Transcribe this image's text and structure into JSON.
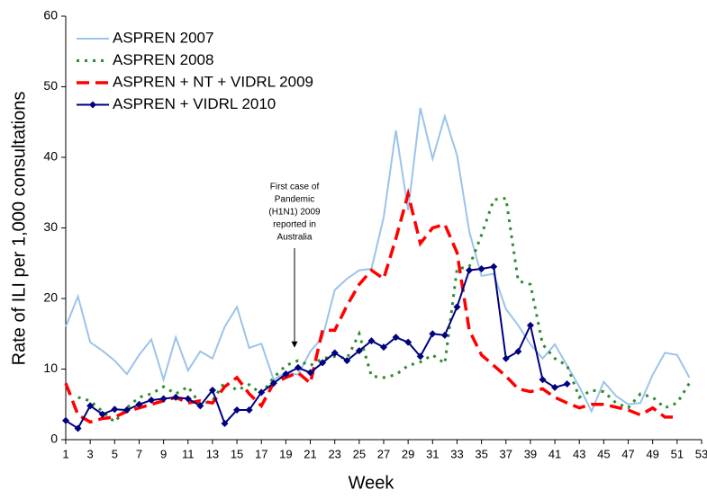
{
  "chart_data": {
    "type": "line",
    "y_label": "Rate of ILI per 1,000 consultations",
    "x_label": "Week",
    "annotation": [
      "First case of",
      "Pandemic",
      "(H1N1) 2009",
      "reported in",
      "Australia"
    ],
    "x": [
      1,
      2,
      3,
      4,
      5,
      6,
      7,
      8,
      9,
      10,
      11,
      12,
      13,
      14,
      15,
      16,
      17,
      18,
      19,
      20,
      21,
      22,
      23,
      24,
      25,
      26,
      27,
      28,
      29,
      30,
      31,
      32,
      33,
      34,
      35,
      36,
      37,
      38,
      39,
      40,
      41,
      42,
      43,
      44,
      45,
      46,
      47,
      48,
      49,
      50,
      51,
      52
    ],
    "xlim": [
      1,
      53
    ],
    "xticks": [
      1,
      3,
      5,
      7,
      9,
      11,
      13,
      15,
      17,
      19,
      21,
      23,
      25,
      27,
      29,
      31,
      33,
      35,
      37,
      39,
      41,
      43,
      45,
      47,
      49,
      51,
      53
    ],
    "ylim": [
      0,
      60
    ],
    "yticks": [
      0,
      10,
      20,
      30,
      40,
      50,
      60
    ],
    "grid": false,
    "legend": "top-left",
    "series": [
      {
        "name": "ASPREN 2007",
        "color": "#9cc3ea",
        "style": "solid",
        "marker": "none",
        "values": [
          16,
          20.3,
          13.8,
          12.6,
          11.2,
          9.3,
          12,
          14.2,
          8.5,
          14.5,
          9.8,
          12.5,
          11.5,
          16,
          18.8,
          13,
          13.6,
          8.5,
          9.5,
          9.2,
          12.5,
          14.5,
          21.2,
          22.8,
          24,
          24.2,
          31.5,
          43.8,
          32.5,
          47,
          39.8,
          45.8,
          40.3,
          29.5,
          23.2,
          23.5,
          18.5,
          16.2,
          13.5,
          11.5,
          13.5,
          10.5,
          7.5,
          4,
          8.2,
          6.2,
          5,
          5.2,
          9.2,
          12.3,
          12,
          8.8
        ]
      },
      {
        "name": "ASPREN 2008",
        "color": "#2e8b2e",
        "style": "dotted",
        "marker": "none",
        "values": [
          null,
          6,
          5.5,
          4,
          2.5,
          4.5,
          6,
          6.5,
          7.5,
          6.5,
          7.5,
          5,
          5.5,
          8.2,
          7,
          7.8,
          6.5,
          8.8,
          10.5,
          11.2,
          10.5,
          11.5,
          11.8,
          11.5,
          15,
          9,
          8.8,
          9.2,
          10.5,
          11,
          12,
          10.8,
          24.2,
          24.5,
          29,
          34,
          34.2,
          22.5,
          22,
          13.5,
          11.5,
          10.5,
          6,
          7,
          6.8,
          5.2,
          4.5,
          6.5,
          6,
          4.5,
          5.2,
          8
        ]
      },
      {
        "name": "ASPREN + NT + VIDRL 2009",
        "color": "#ff0000",
        "style": "dashed",
        "marker": "none",
        "values": [
          8,
          3.5,
          2.5,
          3,
          3.2,
          4,
          4.5,
          5,
          5.5,
          6,
          5.2,
          5.5,
          5.2,
          7.5,
          8.8,
          6.5,
          4.8,
          8,
          8.8,
          9.5,
          8,
          15.5,
          15.5,
          19,
          22,
          24,
          22.8,
          28.5,
          34.8,
          27.8,
          30,
          30.5,
          26.5,
          15.5,
          12,
          10.5,
          9,
          7.2,
          6.8,
          7.2,
          6,
          5.2,
          4.5,
          5,
          5,
          4.6,
          4.2,
          3.5,
          4.5,
          3.2,
          3.2,
          null
        ]
      },
      {
        "name": "ASPREN + VIDRL 2010",
        "color": "#000080",
        "style": "solid",
        "marker": "diamond",
        "values": [
          2.7,
          1.6,
          4.8,
          3.6,
          4.3,
          4.2,
          5,
          5.6,
          5.8,
          6,
          5.8,
          4.8,
          7,
          2.3,
          4.2,
          4.2,
          6.7,
          8,
          9.3,
          10.2,
          9.5,
          10.9,
          12.3,
          11.2,
          12.6,
          14,
          13.1,
          14.5,
          13.8,
          11.8,
          15,
          14.8,
          18.8,
          24,
          24.2,
          24.5,
          11.5,
          12.5,
          16.2,
          8.5,
          7.4,
          7.9,
          null,
          null,
          null,
          null,
          null,
          null,
          null,
          null,
          null,
          null
        ]
      }
    ]
  }
}
